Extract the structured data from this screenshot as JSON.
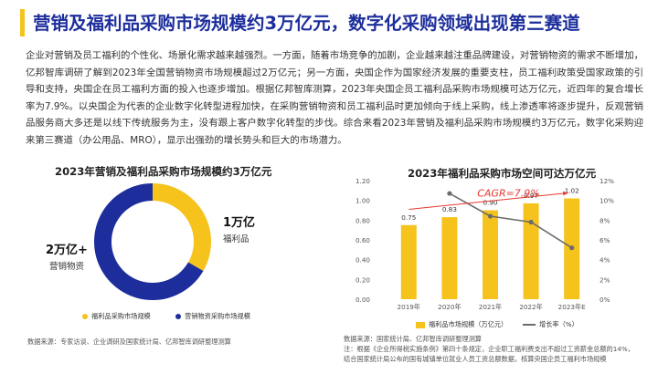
{
  "page": {
    "title": "营销及福利品采购市场规模约3万亿元，数字化采购领域出现第三赛道",
    "paragraph": "企业对营销及员工福利的个性化、场景化需求越来越强烈。一方面，随着市场竞争的加剧，企业越来越注重品牌建设，对营销物资的需求不断增加，亿邦智库调研了解到2023年全国营销物资市场规模超过2万亿元；另一方面，央国企作为国家经济发展的重要支柱，员工福利政策受国家政策的引导和支持，央国企在员工福利方面的投入也逐步增加。根据亿邦智库测算，2023年央国企员工福利品采购市场规模可达万亿元，近四年的复合增长率为7.9%。以央国企为代表的企业数字化转型进程加快，在采购营销物资和员工福利品时更加倾向于线上采购，线上渗透率将逐步提升，反观营销品服务商大多还是以线下传统服务为主，没有跟上客户数字化转型的步伐。综合来看2023年营销及福利品采购市场规模约3万亿元，数字化采购迎来第三赛道（办公用品、MRO），显示出强劲的增长势头和巨大的市场潜力。"
  },
  "left_chart": {
    "title": "2023年营销及福利品采购市场规模约3万亿元",
    "label_right_value": "1万亿",
    "label_right_name": "福利品",
    "label_left_value": "2万亿+",
    "label_left_name": "营销物资",
    "legend": [
      "福利品采购市场规模",
      "营销物资采购市场规模"
    ],
    "source": "数据来源：专家访谈、企业调研及国家统计局、亿邦智库调研整理测算"
  },
  "right_chart": {
    "title": "2023年福利品采购市场空间可达万亿元",
    "cagr_label": "CAGR=7.9%",
    "legend": [
      "福利品市场规模（万亿元）",
      "增长率（%）"
    ],
    "source_lines": [
      "数据来源：国家统计局、亿邦智库调研整理测算",
      "注：根据《企业所得税实施条例》第四十条规定，企业职工福利费支出不超过工资薪金总额的14%，",
      "结合国家统计局公布的国有城镇单位就业人员工资总额数据，核算央国企员工福利市场规模"
    ]
  },
  "colors": {
    "title": "#1d2e9c",
    "accent_yellow": "#f6c21c",
    "blue": "#1d2e9c",
    "line_gray": "#6b6b6b",
    "cagr_red": "#e8372e"
  },
  "chart_data": [
    {
      "type": "pie",
      "title": "2023年营销及福利品采购市场规模约3万亿元",
      "categories": [
        "福利品采购市场规模",
        "营销物资采购市场规模"
      ],
      "values": [
        1,
        2
      ],
      "units": "万亿元"
    },
    {
      "type": "bar",
      "title": "2023年福利品采购市场空间可达万亿元",
      "categories": [
        "2019年",
        "2020年",
        "2021年",
        "2022年",
        "2023年E"
      ],
      "series": [
        {
          "name": "福利品市场规模（万亿元）",
          "values": [
            0.75,
            0.83,
            0.9,
            0.97,
            1.02
          ],
          "axis": "left"
        },
        {
          "name": "增长率（%）",
          "type": "line",
          "values": [
            null,
            10.7,
            8.4,
            7.8,
            5.2
          ],
          "axis": "right"
        }
      ],
      "ylim": [
        0,
        1.2
      ],
      "y_ticks": [
        "0.00",
        "0.20",
        "0.40",
        "0.60",
        "0.80",
        "1.00",
        "1.20"
      ],
      "y2lim": [
        0,
        12
      ],
      "y2_ticks": [
        "0%",
        "2%",
        "4%",
        "6%",
        "8%",
        "10%",
        "12%"
      ],
      "annotation": "CAGR=7.9%",
      "grid": false,
      "legend": "bottom"
    }
  ]
}
